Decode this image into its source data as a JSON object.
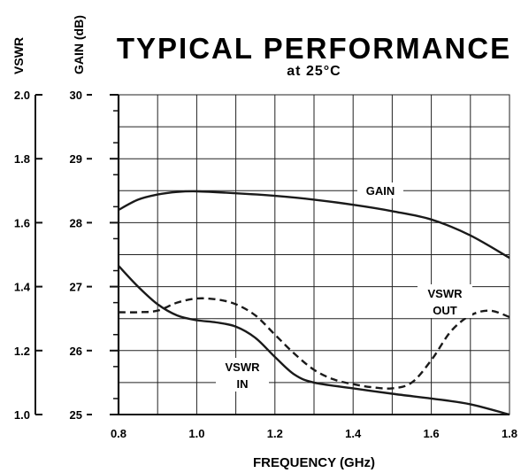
{
  "chart_data": {
    "type": "line",
    "title": "TYPICAL PERFORMANCE",
    "subtitle": "at 25°C",
    "xlabel": "FREQUENCY (GHz)",
    "ylabel_left": "VSWR",
    "ylabel_right": "GAIN (dB)",
    "xlim": [
      0.8,
      1.8
    ],
    "ylim_vswr": [
      1.0,
      2.0
    ],
    "ylim_gain": [
      25,
      30
    ],
    "x_ticks": [
      "0.8",
      "1.0",
      "1.2",
      "1.4",
      "1.6",
      "1.8"
    ],
    "vswr_ticks": [
      "2.0",
      "1.8",
      "1.6",
      "1.4",
      "1.2",
      "1.0"
    ],
    "gain_ticks": [
      "30",
      "29",
      "28",
      "27",
      "26",
      "25"
    ],
    "grid": true,
    "series": [
      {
        "name": "GAIN",
        "axis": "gain",
        "style": "solid",
        "x": [
          0.8,
          0.85,
          0.9,
          0.95,
          1.0,
          1.1,
          1.2,
          1.3,
          1.4,
          1.5,
          1.6,
          1.7,
          1.8
        ],
        "y": [
          28.2,
          28.36,
          28.44,
          28.48,
          28.49,
          28.46,
          28.42,
          28.36,
          28.28,
          28.18,
          28.05,
          27.8,
          27.45
        ]
      },
      {
        "name": "VSWR IN",
        "axis": "vswr",
        "style": "solid",
        "x": [
          0.8,
          0.85,
          0.9,
          0.95,
          1.0,
          1.05,
          1.1,
          1.15,
          1.2,
          1.25,
          1.3,
          1.4,
          1.5,
          1.6,
          1.7,
          1.8
        ],
        "y": [
          1.465,
          1.4,
          1.345,
          1.31,
          1.295,
          1.288,
          1.275,
          1.24,
          1.18,
          1.125,
          1.1,
          1.082,
          1.065,
          1.05,
          1.032,
          1.0
        ]
      },
      {
        "name": "VSWR OUT",
        "axis": "vswr",
        "style": "dashed",
        "x": [
          0.8,
          0.85,
          0.9,
          0.95,
          1.0,
          1.05,
          1.1,
          1.15,
          1.2,
          1.25,
          1.3,
          1.35,
          1.4,
          1.45,
          1.5,
          1.55,
          1.6,
          1.65,
          1.7,
          1.75,
          1.8
        ],
        "y": [
          1.32,
          1.32,
          1.325,
          1.35,
          1.363,
          1.36,
          1.345,
          1.31,
          1.25,
          1.19,
          1.14,
          1.11,
          1.095,
          1.085,
          1.082,
          1.1,
          1.17,
          1.26,
          1.31,
          1.325,
          1.305
        ]
      }
    ],
    "annotations": [
      {
        "lines": [
          "GAIN"
        ]
      },
      {
        "lines": [
          "VSWR",
          "OUT"
        ]
      },
      {
        "lines": [
          "VSWR",
          "IN"
        ]
      }
    ]
  }
}
